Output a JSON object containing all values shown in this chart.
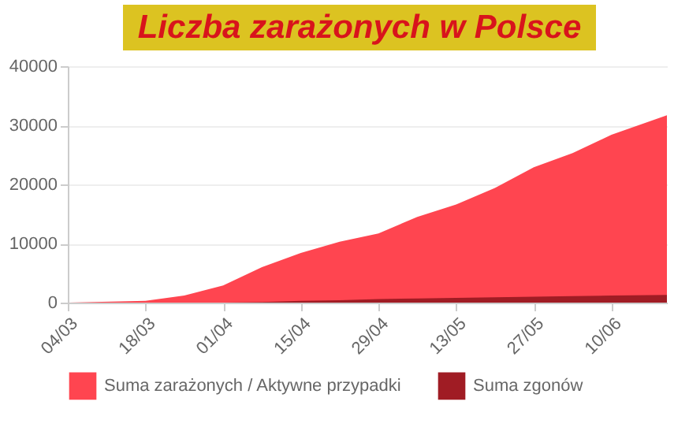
{
  "chart_data": {
    "type": "area",
    "title": "Liczba zarażonych w Polsce",
    "x": [
      "--03-04",
      "--03-18",
      "--03-25",
      "--04-01",
      "--04-08",
      "--04-15",
      "--04-22",
      "--04-29",
      "--05-06",
      "--05-13",
      "--05-20",
      "--05-27",
      "--06-03",
      "--06-10",
      "--06-20"
    ],
    "series": [
      {
        "name": "Suma zarażonych / Aktywne przypadki",
        "color": "#ff4550",
        "values": [
          0,
          300,
          1200,
          2900,
          6000,
          8400,
          10300,
          11700,
          14500,
          16600,
          19400,
          22900,
          25300,
          28400,
          31700
        ]
      },
      {
        "name": "Suma zgonów",
        "color": "#a01c24",
        "values": [
          0,
          0,
          0,
          0,
          100,
          300,
          400,
          600,
          700,
          800,
          900,
          1000,
          1100,
          1200,
          1300
        ]
      }
    ],
    "xlim": [
      "--03-04",
      "--06-20"
    ],
    "xticks": [
      {
        "value": "--03-04",
        "label": "04/03"
      },
      {
        "value": "--03-18",
        "label": "18/03"
      },
      {
        "value": "--04-01",
        "label": "01/04"
      },
      {
        "value": "--04-15",
        "label": "15/04"
      },
      {
        "value": "--04-29",
        "label": "29/04"
      },
      {
        "value": "--05-13",
        "label": "13/05"
      },
      {
        "value": "--05-27",
        "label": "27/05"
      },
      {
        "value": "--06-10",
        "label": "10/06"
      }
    ],
    "ylim": [
      0,
      40000
    ],
    "yticks": [
      0,
      10000,
      20000,
      30000,
      40000
    ],
    "grid": "y",
    "legend": "bottom"
  }
}
